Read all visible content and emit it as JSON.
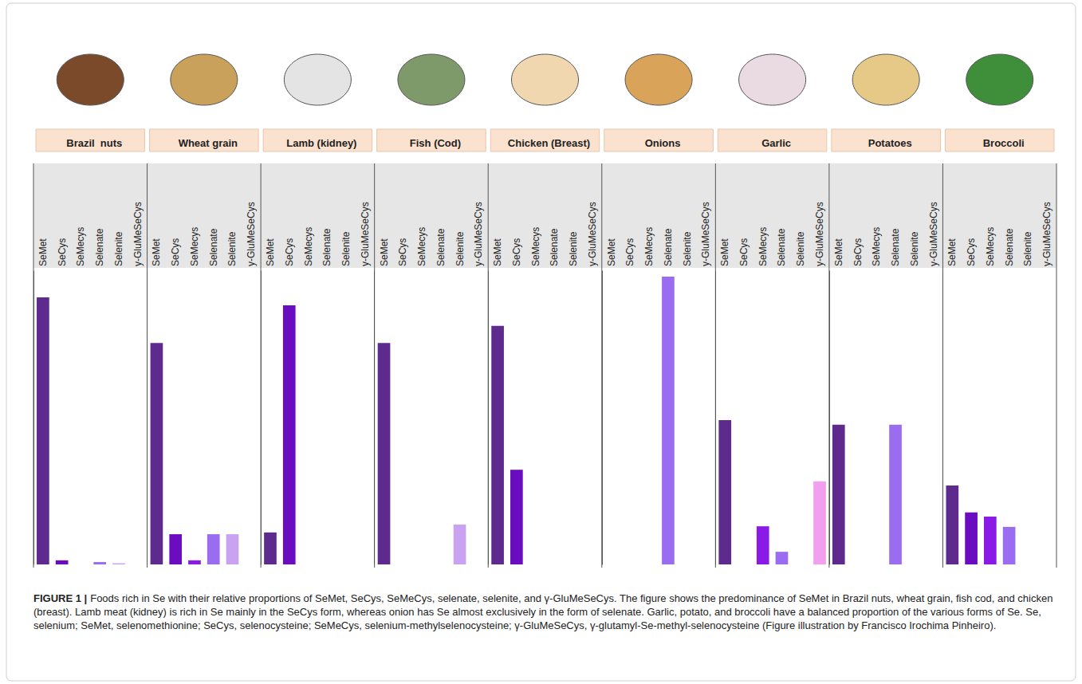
{
  "chart_data": [
    {
      "type": "bar",
      "title": "Brazil  nuts",
      "categories": [
        "SeMet",
        "SeCys",
        "SeMecys",
        "Selenate",
        "Selenite",
        "y-GluMeSeCys"
      ],
      "values": [
        91,
        1.4,
        0,
        0.8,
        0.4,
        0
      ],
      "colors": [
        "#5f2a8e",
        "#6a0cc0",
        "#8a1ae6",
        "#9a6cf0",
        "#c9a3f2",
        "#f2a0ee"
      ],
      "ylim": [
        0,
        100
      ],
      "grid": false,
      "tick_labels": "x"
    },
    {
      "type": "bar",
      "title": "Wheat grain",
      "categories": [
        "SeMet",
        "SeCys",
        "SeMecys",
        "Selenate",
        "Selenite",
        "y-GluMeSeCys"
      ],
      "values": [
        75.5,
        10.3,
        1.4,
        10.3,
        10.3,
        0
      ],
      "colors": [
        "#5f2a8e",
        "#6a0cc0",
        "#8a1ae6",
        "#9a6cf0",
        "#c9a3f2",
        "#f2a0ee"
      ],
      "ylim": [
        0,
        100
      ],
      "grid": false,
      "tick_labels": "x"
    },
    {
      "type": "bar",
      "title": "Lamb (kidney)",
      "categories": [
        "SeMet",
        "SeCys",
        "SeMecys",
        "Selenate",
        "Selenite",
        "y-GluMeSeCys"
      ],
      "values": [
        10.9,
        88.3,
        0,
        0,
        0,
        0
      ],
      "colors": [
        "#5f2a8e",
        "#6a0cc0",
        "#8a1ae6",
        "#9a6cf0",
        "#c9a3f2",
        "#f2a0ee"
      ],
      "ylim": [
        0,
        100
      ],
      "grid": false,
      "tick_labels": "x"
    },
    {
      "type": "bar",
      "title": "Fish (Cod)",
      "categories": [
        "SeMet",
        "SeCys",
        "SeMecys",
        "Selenate",
        "Selenite",
        "y-GluMeSeCys"
      ],
      "values": [
        75.5,
        0,
        0,
        0,
        13.6,
        0
      ],
      "colors": [
        "#5f2a8e",
        "#6a0cc0",
        "#8a1ae6",
        "#9a6cf0",
        "#c9a3f2",
        "#f2a0ee"
      ],
      "ylim": [
        0,
        100
      ],
      "grid": false,
      "tick_labels": "x"
    },
    {
      "type": "bar",
      "title": "Chicken (Breast)",
      "categories": [
        "SeMet",
        "SeCys",
        "SeMecys",
        "Selenate",
        "Selenite",
        "y-GluMeSeCys"
      ],
      "values": [
        81.3,
        32.3,
        0,
        0,
        0,
        0
      ],
      "colors": [
        "#5f2a8e",
        "#6a0cc0",
        "#8a1ae6",
        "#9a6cf0",
        "#c9a3f2",
        "#f2a0ee"
      ],
      "ylim": [
        0,
        100
      ],
      "grid": false,
      "tick_labels": "x"
    },
    {
      "type": "bar",
      "title": "Onions",
      "categories": [
        "SeMet",
        "SeCys",
        "SeMecys",
        "Selenate",
        "Selenite",
        "y-GluMeSeCys"
      ],
      "values": [
        0,
        0,
        0,
        98.1,
        0,
        0
      ],
      "colors": [
        "#5f2a8e",
        "#6a0cc0",
        "#8a1ae6",
        "#9a6cf0",
        "#c9a3f2",
        "#f2a0ee"
      ],
      "ylim": [
        0,
        100
      ],
      "grid": false,
      "tick_labels": "x"
    },
    {
      "type": "bar",
      "title": "Garlic",
      "categories": [
        "SeMet",
        "SeCys",
        "SeMecys",
        "Selenate",
        "Selenite",
        "y-GluMeSeCys"
      ],
      "values": [
        49.2,
        0,
        13,
        4.3,
        0,
        28.3
      ],
      "colors": [
        "#5f2a8e",
        "#6a0cc0",
        "#8a1ae6",
        "#9a6cf0",
        "#c9a3f2",
        "#f2a0ee"
      ],
      "ylim": [
        0,
        100
      ],
      "grid": false,
      "tick_labels": "x"
    },
    {
      "type": "bar",
      "title": "Potatoes",
      "categories": [
        "SeMet",
        "SeCys",
        "SeMecys",
        "Selenate",
        "Selenite",
        "y-GluMeSeCys"
      ],
      "values": [
        47.6,
        0,
        0,
        47.6,
        0,
        0
      ],
      "colors": [
        "#5f2a8e",
        "#6a0cc0",
        "#8a1ae6",
        "#9a6cf0",
        "#c9a3f2",
        "#f2a0ee"
      ],
      "ylim": [
        0,
        100
      ],
      "grid": false,
      "tick_labels": "x"
    },
    {
      "type": "bar",
      "title": "Broccoli",
      "categories": [
        "SeMet",
        "SeCys",
        "SeMecys",
        "Selenate",
        "Selenite",
        "y-GluMeSeCys"
      ],
      "values": [
        26.9,
        17.7,
        16.3,
        12.8,
        0,
        0
      ],
      "colors": [
        "#5f2a8e",
        "#6a0cc0",
        "#8a1ae6",
        "#9a6cf0",
        "#c9a3f2",
        "#f2a0ee"
      ],
      "ylim": [
        0,
        100
      ],
      "grid": false,
      "tick_labels": "x"
    }
  ],
  "caption_label": "FIGURE 1 |",
  "caption": "Foods rich in Se with their relative proportions of SeMet, SeCys, SeMeCys, selenate, selenite, and γ-GluMeSeCys. The figure shows the predominance of SeMet in Brazil nuts, wheat grain, fish cod, and chicken (breast). Lamb meat (kidney) is rich in Se mainly in the SeCys form, whereas onion has Se almost exclusively in the form of selenate. Garlic, potato, and broccoli have a balanced proportion of the various forms of Se. Se, selenium; SeMet, selenomethionine; SeCys, selenocysteine; SeMeCys, selenium-methylselenocysteine; γ-GluMeSeCys, γ-glutamyl-Se-methyl-selenocysteine (Figure illustration by Francisco Irochima Pinheiro)."
}
